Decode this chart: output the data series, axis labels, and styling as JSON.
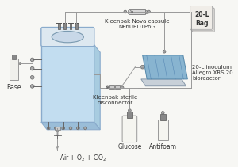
{
  "bg_color": "#f7f7f4",
  "line_color": "#999999",
  "dark_line": "#666666",
  "labels": {
    "base": {
      "text": "Base",
      "fontsize": 5.5
    },
    "air": {
      "text": "Air + O$_2$ + CO$_2$",
      "fontsize": 5.5
    },
    "glucose": {
      "text": "Glucose",
      "fontsize": 5.5
    },
    "antifoam": {
      "text": "Antifoam",
      "fontsize": 5.5
    },
    "kleenpak_nova": {
      "text": "Kleenpak Nova capsule\nNP6UEDTP6G",
      "fontsize": 5.0
    },
    "kleenpak_sterile": {
      "text": "Kleenpak sterile\ndisconnector",
      "fontsize": 5.0
    },
    "bag20L": {
      "text": "20-L\nBag",
      "fontsize": 5.5
    },
    "inoculum": {
      "text": "20-L inoculum\nAllegro XRS 20\nbioreactor",
      "fontsize": 5.0
    }
  }
}
